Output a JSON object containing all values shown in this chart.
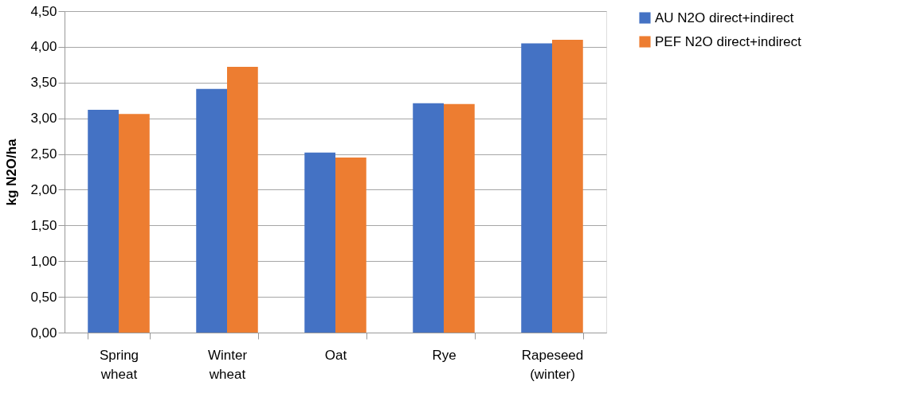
{
  "chart_data": {
    "type": "bar",
    "ylabel": "kg N2O/ha",
    "categories": [
      "Spring wheat",
      "Winter wheat",
      "Oat",
      "Rye",
      "Rapeseed (winter)"
    ],
    "series": [
      {
        "name": "AU  N2O direct+indirect",
        "color": "#4472c4",
        "values": [
          3.12,
          3.41,
          2.52,
          3.21,
          4.05
        ]
      },
      {
        "name": "PEF N2O direct+indirect",
        "color": "#ed7d31",
        "values": [
          3.06,
          3.72,
          2.45,
          3.2,
          4.1
        ]
      }
    ],
    "ylim": [
      0,
      4.5
    ],
    "yticks": [
      {
        "value": 0,
        "label": "0,00"
      },
      {
        "value": 0.5,
        "label": "0,50"
      },
      {
        "value": 1,
        "label": "1,00"
      },
      {
        "value": 1.5,
        "label": "1,50"
      },
      {
        "value": 2,
        "label": "2,00"
      },
      {
        "value": 2.5,
        "label": "2,50"
      },
      {
        "value": 3,
        "label": "3,00"
      },
      {
        "value": 3.5,
        "label": "3,50"
      },
      {
        "value": 4,
        "label": "4,00"
      },
      {
        "value": 4.5,
        "label": "4,50"
      }
    ],
    "grid": "y",
    "legend": "right"
  }
}
